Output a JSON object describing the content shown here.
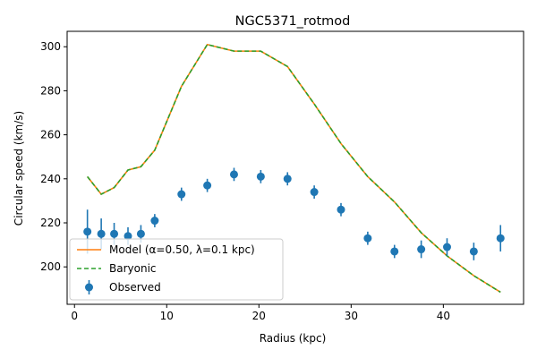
{
  "chart_data": {
    "type": "line",
    "title": "NGC5371_rotmod",
    "xlabel": "Radius (kpc)",
    "ylabel": "Circular speed (km/s)",
    "xlim": [
      -0.8,
      48.7
    ],
    "ylim": [
      183,
      307
    ],
    "xticks": [
      0,
      10,
      20,
      30,
      40
    ],
    "yticks": [
      200,
      220,
      240,
      260,
      280,
      300
    ],
    "grid": false,
    "legend_position": "lower-left",
    "colors": {
      "model": "#ff7f0e",
      "baryonic": "#2ca02c",
      "observed": "#1f77b4"
    },
    "series": [
      {
        "name": "Model (α=0.50, λ=0.1 kpc)",
        "style": "solid-line",
        "x": [
          1.4,
          2.9,
          4.3,
          5.8,
          7.2,
          8.7,
          11.6,
          14.4,
          17.3,
          20.2,
          23.1,
          26.0,
          28.9,
          31.8,
          34.7,
          37.6,
          40.4,
          43.3,
          46.2
        ],
        "y": [
          241,
          233,
          236,
          244,
          245.5,
          253,
          282,
          301,
          298,
          298,
          291,
          274,
          256,
          241,
          229.5,
          215.5,
          205,
          196,
          188.5
        ]
      },
      {
        "name": "Baryonic",
        "style": "dashed-line",
        "x": [
          1.4,
          2.9,
          4.3,
          5.8,
          7.2,
          8.7,
          11.6,
          14.4,
          17.3,
          20.2,
          23.1,
          26.0,
          28.9,
          31.8,
          34.7,
          37.6,
          40.4,
          43.3,
          46.2
        ],
        "y": [
          241,
          233,
          236,
          244,
          245.5,
          253,
          282,
          301,
          298,
          298,
          291,
          274,
          256,
          241,
          229.5,
          215.5,
          205,
          196,
          188.5
        ]
      },
      {
        "name": "Observed",
        "style": "errorbar-points",
        "x": [
          1.4,
          2.9,
          4.3,
          5.8,
          7.2,
          8.7,
          11.6,
          14.4,
          17.3,
          20.2,
          23.1,
          26.0,
          28.9,
          31.8,
          34.7,
          37.6,
          40.4,
          43.3,
          46.2
        ],
        "y": [
          216,
          215,
          215,
          214,
          215,
          221,
          233,
          237,
          242,
          241,
          240,
          234,
          226,
          213,
          207,
          208,
          209,
          207,
          213
        ],
        "err": [
          10,
          7,
          5,
          4,
          4,
          3,
          3,
          3,
          3,
          3,
          3,
          3,
          3,
          3,
          3,
          4,
          4,
          4,
          6
        ]
      }
    ]
  }
}
